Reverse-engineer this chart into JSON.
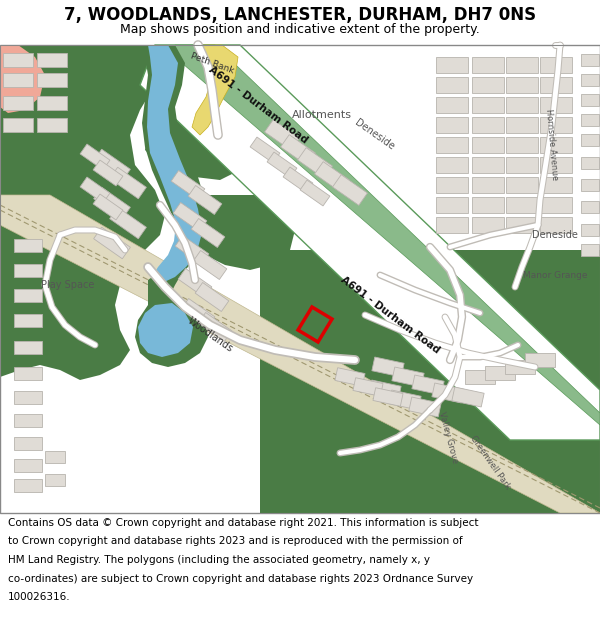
{
  "title": "7, WOODLANDS, LANCHESTER, DURHAM, DH7 0NS",
  "subtitle": "Map shows position and indicative extent of the property.",
  "footer_lines": [
    "Contains OS data © Crown copyright and database right 2021. This information is subject",
    "to Crown copyright and database rights 2023 and is reproduced with the permission of",
    "HM Land Registry. The polygons (including the associated geometry, namely x, y",
    "co-ordinates) are subject to Crown copyright and database rights 2023 Ordnance Survey",
    "100026316."
  ],
  "map_bg": "#ffffff",
  "green_dark": "#4a7c45",
  "green_light": "#b8d4a8",
  "green_med": "#6a9e60",
  "water_blue": "#78b8d8",
  "building_fill": "#e0dcd6",
  "building_edge": "#b8b4ae",
  "road_green_fill": "#8aba8a",
  "road_green_edge": "#5a9a5a",
  "road_white": "#ffffff",
  "road_edge": "#c8c4be",
  "salmon": "#f0a898",
  "yellow": "#e8d870",
  "property_red": "#dd0000",
  "title_fs": 12,
  "subtitle_fs": 9,
  "footer_fs": 7.5
}
